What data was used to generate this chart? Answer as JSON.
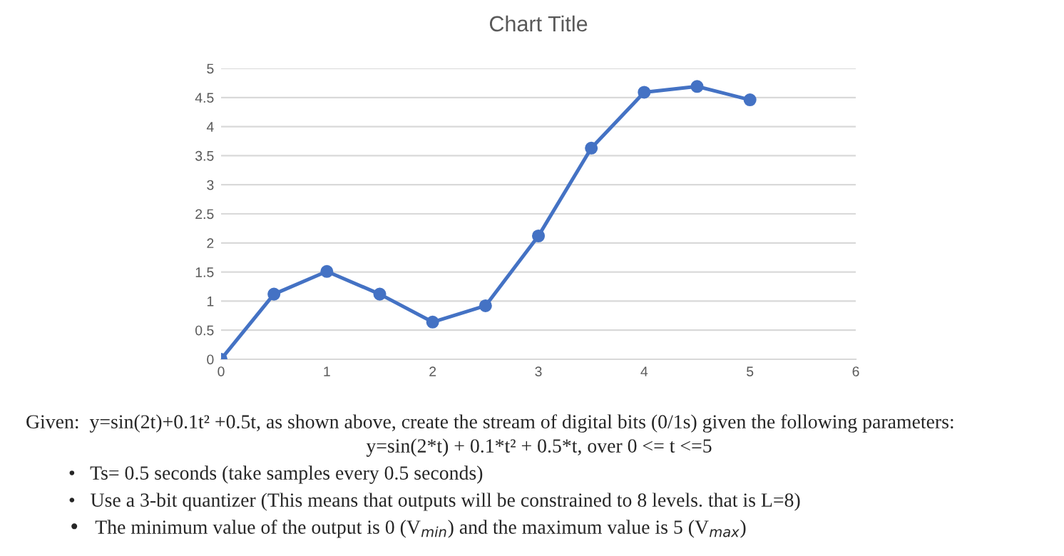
{
  "chart_data": {
    "type": "line",
    "title": "Chart Title",
    "x": [
      0,
      0.5,
      1,
      1.5,
      2,
      2.5,
      3,
      3.5,
      4,
      4.5,
      5
    ],
    "series": [
      {
        "color": "#4472c4",
        "values": [
          0,
          1.12,
          1.51,
          1.12,
          0.64,
          0.92,
          2.12,
          3.63,
          4.59,
          4.69,
          4.46
        ]
      }
    ],
    "xlim": [
      0,
      6
    ],
    "xticks": [
      0,
      1,
      2,
      3,
      4,
      5,
      6
    ],
    "ylim": [
      0,
      5
    ],
    "yticks": [
      0,
      0.5,
      1,
      1.5,
      2,
      2.5,
      3,
      3.5,
      4,
      4.5,
      5
    ],
    "grid": "y",
    "marker": "circle",
    "line_style": "solid",
    "legend": false,
    "annotations": [
      "Given:  y=sin(2t)+0.1t² +0.5t, as shown above, create the stream of digital bits (0/1s) given the following parameters:",
      "y=sin(2*t) + 0.1*t² + 0.5*t, over 0 <= t <=5",
      "•   Ts= 0.5 seconds (take samples every 0.5 seconds)",
      "•   Use a 3-bit quantizer (This means that outputs will be constrained to 8 levels. that is L=8)",
      "•   The minimum value of the output is 0 (V$_{min}$) and the maximum value is 5 (V$_{max}$)"
    ]
  }
}
